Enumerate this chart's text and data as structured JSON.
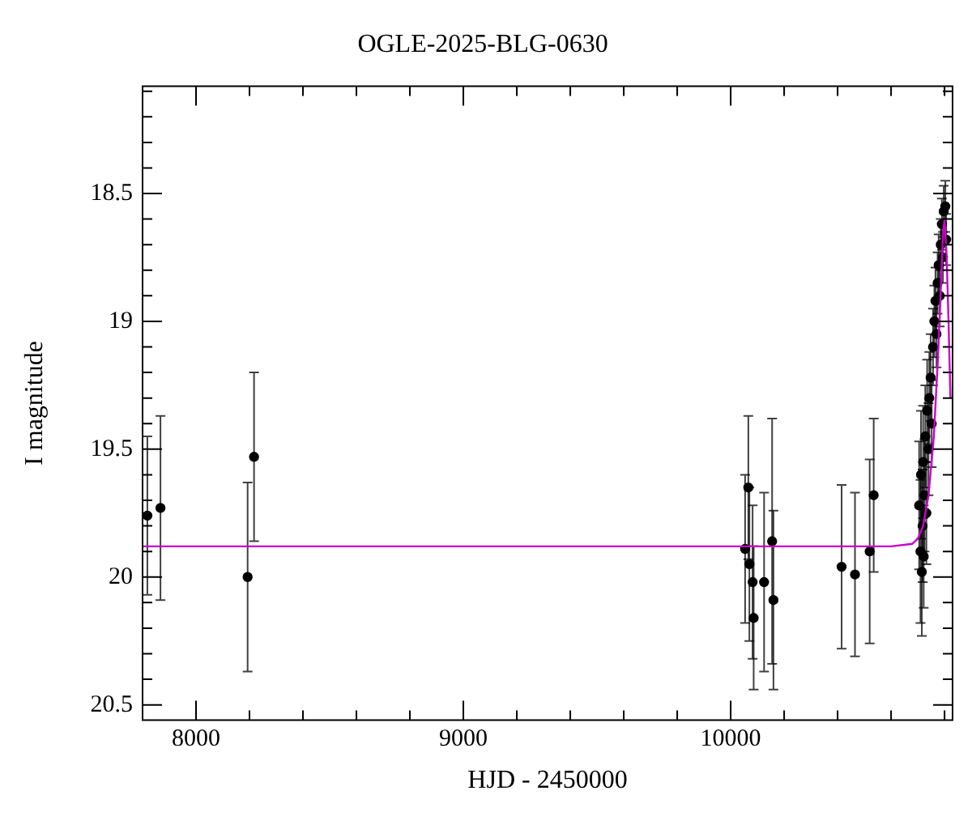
{
  "chart_data": {
    "type": "scatter",
    "title": "OGLE-2025-BLG-0630",
    "xlabel": "HJD - 2450000",
    "ylabel": "I magnitude",
    "xlim": [
      7800,
      10830
    ],
    "xticks": [
      8000,
      {
        "value": 8200,
        "label": null
      },
      {
        "value": 8400,
        "label": null
      },
      {
        "value": 8600,
        "label": null
      },
      {
        "value": 8800,
        "label": null
      },
      9000,
      {
        "value": 9200,
        "label": null
      },
      {
        "value": 9400,
        "label": null
      },
      {
        "value": 9600,
        "label": null
      },
      {
        "value": 9800,
        "label": null
      },
      10000,
      {
        "value": 10200,
        "label": null
      },
      {
        "value": 10400,
        "label": null
      },
      {
        "value": 10600,
        "label": null
      },
      {
        "value": 10800,
        "label": null
      }
    ],
    "ylim": [
      20.56,
      18.08
    ],
    "yticks": [
      {
        "value": 18.1,
        "label": null
      },
      {
        "value": 18.2,
        "label": null
      },
      {
        "value": 18.3,
        "label": null
      },
      {
        "value": 18.4,
        "label": null
      },
      18.5,
      {
        "value": 18.6,
        "label": null
      },
      {
        "value": 18.7,
        "label": null
      },
      {
        "value": 18.8,
        "label": null
      },
      {
        "value": 18.9,
        "label": null
      },
      19,
      {
        "value": 19.1,
        "label": null
      },
      {
        "value": 19.2,
        "label": null
      },
      {
        "value": 19.3,
        "label": null
      },
      {
        "value": 19.4,
        "label": null
      },
      19.5,
      {
        "value": 19.6,
        "label": null
      },
      {
        "value": 19.7,
        "label": null
      },
      {
        "value": 19.8,
        "label": null
      },
      {
        "value": 19.9,
        "label": null
      },
      20,
      {
        "value": 20.1,
        "label": null
      },
      {
        "value": 20.2,
        "label": null
      },
      {
        "value": 20.3,
        "label": null
      },
      {
        "value": 20.4,
        "label": null
      },
      20.5
    ],
    "grid": false,
    "legend": false,
    "series": [
      {
        "type": "line",
        "color": "#cc00cc",
        "marker": "none",
        "x": [
          7800,
          10600,
          10680,
          10700,
          10720,
          10740,
          10760,
          10775,
          10785,
          10795,
          10800,
          10808,
          10815,
          10822
        ],
        "values": [
          19.88,
          19.88,
          19.87,
          19.85,
          19.8,
          19.68,
          19.45,
          19.15,
          18.9,
          18.65,
          18.6,
          18.75,
          19.0,
          19.3
        ]
      },
      {
        "color": "#000000",
        "marker": "circle",
        "x": [
          7818,
          7867,
          8193,
          8217,
          10054,
          10066,
          10070,
          10082,
          10086,
          10125,
          10155,
          10160,
          10415,
          10465,
          10520,
          10535,
          10705,
          10710,
          10712,
          10715,
          10718,
          10720,
          10722,
          10725,
          10728,
          10732,
          10735,
          10740,
          10743,
          10748,
          10752,
          10757,
          10762,
          10766,
          10770,
          10774,
          10778,
          10782,
          10786,
          10790,
          10794,
          10797,
          10800,
          10803,
          10806
        ],
        "values": [
          19.76,
          19.73,
          20.0,
          19.53,
          19.89,
          19.65,
          19.95,
          20.02,
          20.16,
          20.02,
          19.86,
          20.09,
          19.96,
          19.99,
          19.9,
          19.68,
          19.72,
          19.9,
          19.6,
          19.98,
          19.8,
          19.55,
          19.92,
          19.68,
          19.45,
          19.75,
          19.35,
          19.5,
          19.3,
          19.22,
          19.4,
          19.1,
          19.0,
          18.92,
          19.05,
          18.85,
          18.78,
          18.9,
          18.7,
          18.62,
          18.75,
          18.57,
          null,
          18.55,
          18.68
        ],
        "errors": [
          0.31,
          0.36,
          0.37,
          0.33,
          0.29,
          0.28,
          0.3,
          0.3,
          0.28,
          0.35,
          0.48,
          0.35,
          0.32,
          0.32,
          0.36,
          0.3,
          0.25,
          0.28,
          0.25,
          0.25,
          0.22,
          0.22,
          0.2,
          0.22,
          0.2,
          0.2,
          0.2,
          0.18,
          0.18,
          0.17,
          0.17,
          0.15,
          0.14,
          0.13,
          0.13,
          0.12,
          0.12,
          0.12,
          0.1,
          0.1,
          0.1,
          0.1,
          null,
          0.1,
          0.1
        ]
      }
    ]
  }
}
